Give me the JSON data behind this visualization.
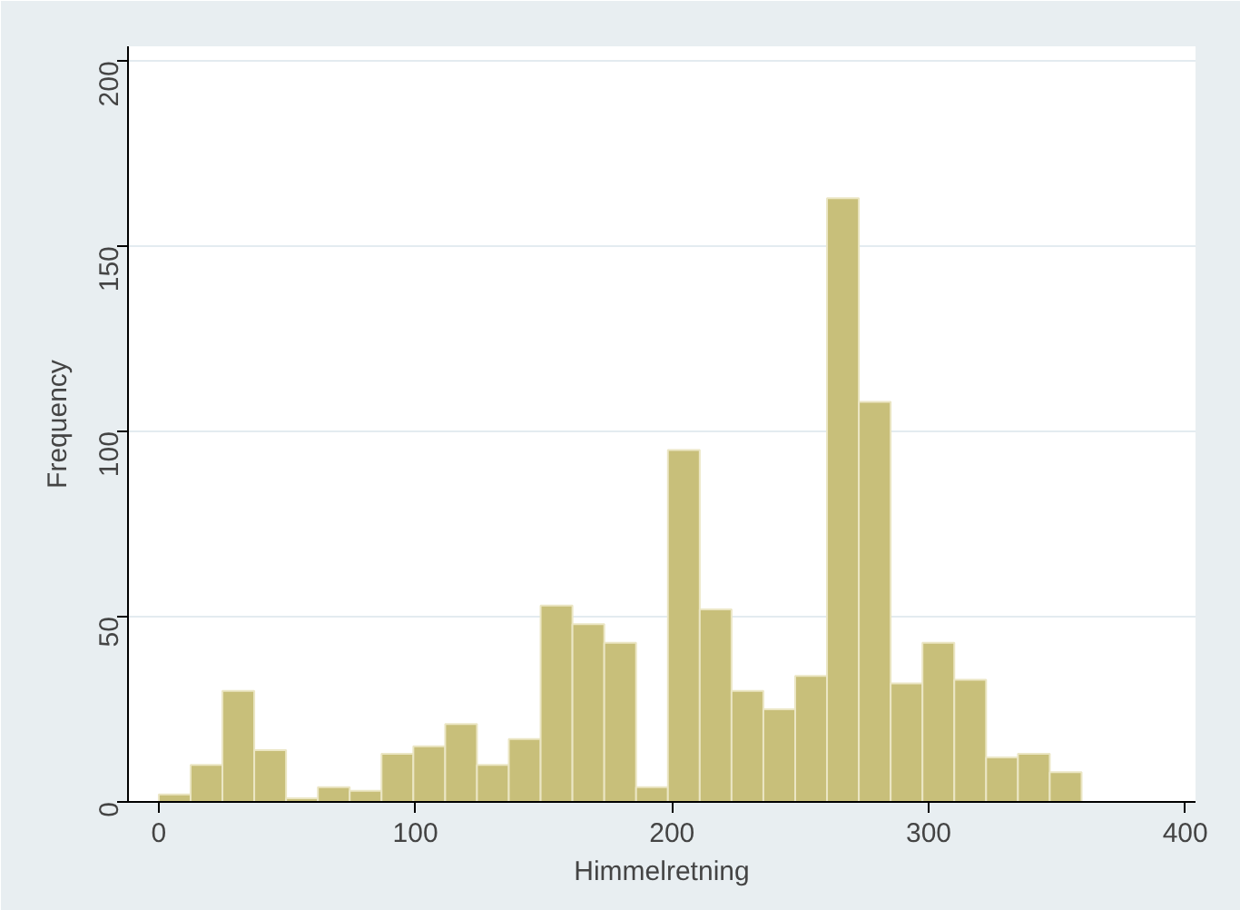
{
  "chart_data": {
    "type": "histogram",
    "xlabel": "Himmelretning",
    "ylabel": "Frequency",
    "bins": [
      0,
      12.4,
      24.8,
      37.2,
      49.6,
      62,
      74.4,
      86.8,
      99.2,
      111.6,
      124,
      136.4,
      148.8,
      161.2,
      173.6,
      186,
      198.4,
      210.8,
      223.2,
      235.6,
      248,
      260.4,
      272.8,
      285.2,
      297.6,
      310,
      322.4,
      334.8,
      347.2,
      359.6
    ],
    "values": [
      2,
      10,
      30,
      14,
      1,
      4,
      3,
      13,
      15,
      21,
      10,
      17,
      53,
      48,
      43,
      4,
      95,
      52,
      30,
      25,
      34,
      163,
      108,
      32,
      43,
      33,
      12,
      13,
      8
    ],
    "color": "#c8bf7a",
    "xlim": [
      -12,
      404
    ],
    "ylim": [
      0,
      204
    ],
    "xticks": [
      0,
      100,
      200,
      300,
      400
    ],
    "yticks": [
      0,
      50,
      100,
      150,
      200
    ],
    "grid": "y"
  }
}
